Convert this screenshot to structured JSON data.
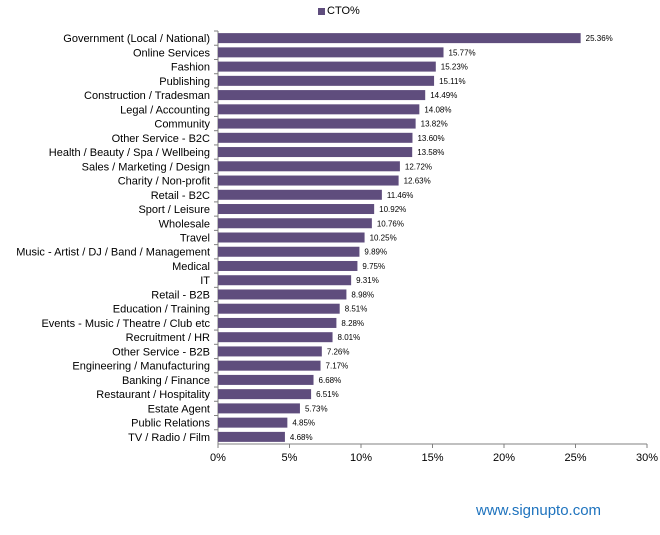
{
  "chart_data": {
    "type": "bar",
    "orientation": "horizontal",
    "legend": "top-center",
    "series": [
      {
        "name": "CTO%",
        "color": "#5f4d7d"
      }
    ],
    "categories": [
      "Government (Local / National)",
      "Online Services",
      "Fashion",
      "Publishing",
      "Construction / Tradesman",
      "Legal / Accounting",
      "Community",
      "Other Service - B2C",
      "Health / Beauty / Spa / Wellbeing",
      "Sales / Marketing / Design",
      "Charity / Non-profit",
      "Retail - B2C",
      "Sport / Leisure",
      "Wholesale",
      "Travel",
      "Music - Artist / DJ / Band / Management",
      "Medical",
      "IT",
      "Retail - B2B",
      "Education / Training",
      "Events - Music / Theatre / Club etc",
      "Recruitment / HR",
      "Other Service - B2B",
      "Engineering / Manufacturing",
      "Banking / Finance",
      "Restaurant / Hospitality",
      "Estate Agent",
      "Public Relations",
      "TV / Radio / Film"
    ],
    "values": [
      25.36,
      15.77,
      15.23,
      15.11,
      14.49,
      14.08,
      13.82,
      13.6,
      13.58,
      12.72,
      12.63,
      11.46,
      10.92,
      10.76,
      10.25,
      9.89,
      9.75,
      9.31,
      8.98,
      8.51,
      8.28,
      8.01,
      7.26,
      7.17,
      6.68,
      6.51,
      5.73,
      4.85,
      4.68
    ],
    "value_labels": [
      "25.36%",
      "15.77%",
      "15.23%",
      "15.11%",
      "14.49%",
      "14.08%",
      "13.82%",
      "13.60%",
      "13.58%",
      "12.72%",
      "12.63%",
      "11.46%",
      "10.92%",
      "10.76%",
      "10.25%",
      "9.89%",
      "9.75%",
      "9.31%",
      "8.98%",
      "8.51%",
      "8.28%",
      "8.01%",
      "7.26%",
      "7.17%",
      "6.68%",
      "6.51%",
      "5.73%",
      "4.85%",
      "4.68%"
    ],
    "xlim": [
      0,
      30
    ],
    "x_ticks": [
      0,
      5,
      10,
      15,
      20,
      25,
      30
    ],
    "x_tick_labels": [
      "0%",
      "5%",
      "10%",
      "15%",
      "20%",
      "25%",
      "30%"
    ],
    "grid": false
  },
  "legend_label": "CTO%",
  "brand_text": "www.signupto.com"
}
